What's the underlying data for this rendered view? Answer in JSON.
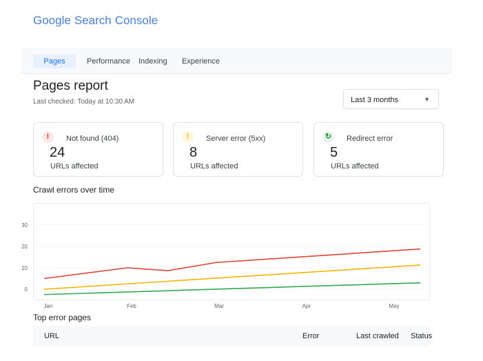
{
  "header": {
    "logo_word_1": "Google",
    "logo_word_1_overlap": "Search",
    "logo_word_2": "Console"
  },
  "nav": {
    "tabs": [
      {
        "label": "Pages",
        "active": true
      },
      {
        "label": "Performance"
      },
      {
        "label": "Indexing"
      },
      {
        "label": "Experience"
      }
    ]
  },
  "page": {
    "title": "Pages report",
    "last_checked": "Last checked: Today at 10:30 AM",
    "range_select": "Last 3 months"
  },
  "cards": [
    {
      "label": "Not found (404)",
      "value": "24",
      "caption": "URLs affected",
      "icon": "exclamation-icon",
      "color": "#d93025",
      "bg": "#fce8e6",
      "glyph": "!"
    },
    {
      "label": "Server error (5xx)",
      "value": "8",
      "caption": "URLs affected",
      "icon": "warning-icon",
      "color": "#f9ab00",
      "bg": "#fef7e0",
      "glyph": "!"
    },
    {
      "label": "Redirect error",
      "value": "5",
      "caption": "URLs affected",
      "icon": "redirect-icon",
      "color": "#1e8e3e",
      "bg": "#e6f4ea",
      "glyph": "↻"
    }
  ],
  "chart_title": "Crawl errors over time",
  "chart_data": {
    "type": "line",
    "x_ticks": [
      "Jan",
      "Feb",
      "Mar",
      "Apr",
      "May"
    ],
    "y_ticks": [
      0,
      10,
      20,
      30
    ],
    "ylim": [
      -4,
      36
    ],
    "grid": true,
    "series": [
      {
        "color": "#db4437",
        "points": [
          [
            0,
            5
          ],
          [
            0.95,
            10
          ],
          [
            1.42,
            8.7
          ],
          [
            1.97,
            12.5
          ],
          [
            4.3,
            18.8
          ]
        ]
      },
      {
        "color": "#f4b400",
        "points": [
          [
            0,
            0
          ],
          [
            4.3,
            11.3
          ]
        ]
      },
      {
        "color": "#34a853",
        "points": [
          [
            0,
            -2.5
          ],
          [
            4.3,
            3
          ]
        ]
      }
    ]
  },
  "table": {
    "title": "Top error pages",
    "columns": [
      "URL",
      "Error",
      "Last crawled",
      "Status"
    ]
  }
}
